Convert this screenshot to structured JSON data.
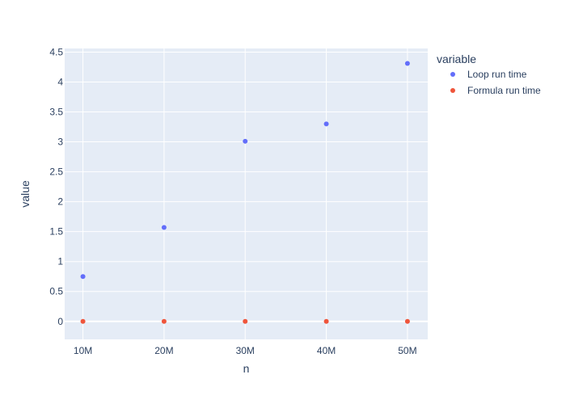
{
  "chart_data": {
    "type": "scatter",
    "xlabel": "n",
    "ylabel": "value",
    "x": [
      10000000,
      20000000,
      30000000,
      40000000,
      50000000
    ],
    "xticks": [
      10000000,
      20000000,
      30000000,
      40000000,
      50000000
    ],
    "xtick_labels": [
      "10M",
      "20M",
      "30M",
      "40M",
      "50M"
    ],
    "xlim": [
      7750000,
      52500000
    ],
    "yticks": [
      0,
      0.5,
      1,
      1.5,
      2,
      2.5,
      3,
      3.5,
      4,
      4.5
    ],
    "ytick_labels": [
      "0",
      "0.5",
      "1",
      "1.5",
      "2",
      "2.5",
      "3",
      "3.5",
      "4",
      "4.5"
    ],
    "ylim": [
      -0.3,
      4.56
    ],
    "grid": true,
    "legend": {
      "title": "variable",
      "placement": "top-right outside"
    },
    "series": [
      {
        "name": "Loop run time",
        "color": "#636efa",
        "values": [
          0.75,
          1.57,
          3.01,
          3.3,
          4.31
        ]
      },
      {
        "name": "Formula run time",
        "color": "#ef553b",
        "values": [
          0,
          0,
          0,
          0,
          0
        ]
      }
    ]
  },
  "colors": {
    "plot_background": "#e5ecf6",
    "grid": "#ffffff",
    "text": "#2a3f5f"
  }
}
